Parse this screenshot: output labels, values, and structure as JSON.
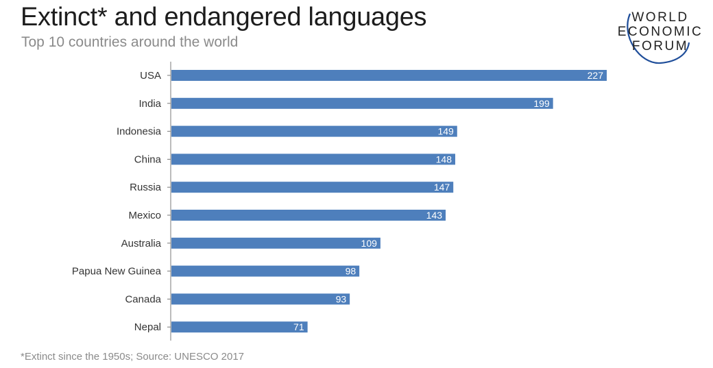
{
  "header": {
    "title": "Extinct* and endangered languages",
    "subtitle": "Top 10 countries around the world"
  },
  "logo": {
    "line1": "WORLD",
    "line2": "ECONOMIC",
    "line3": "FORUM",
    "arc_color": "#1f4e9a"
  },
  "chart_data": {
    "type": "bar",
    "orientation": "horizontal",
    "categories": [
      "USA",
      "India",
      "Indonesia",
      "China",
      "Russia",
      "Mexico",
      "Australia",
      "Papua New Guinea",
      "Canada",
      "Nepal"
    ],
    "values": [
      227,
      199,
      149,
      148,
      147,
      143,
      109,
      98,
      93,
      71
    ],
    "xlim": [
      0,
      227
    ],
    "bar_color": "#4e7fbc",
    "label_color": "#ffffff",
    "grid": false,
    "legend": "none"
  },
  "footnote": "*Extinct since the 1950s; Source: UNESCO 2017"
}
